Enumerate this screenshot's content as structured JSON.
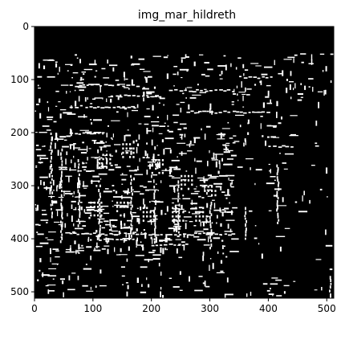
{
  "chart_data": {
    "type": "heatmap",
    "subtype": "binary-edge-image",
    "title": "img_mar_hildreth",
    "colormap": "gray",
    "image_width": 512,
    "image_height": 512,
    "xlim": [
      0,
      512
    ],
    "ylim": [
      512,
      0
    ],
    "xticks": [
      0,
      100,
      200,
      300,
      400,
      500
    ],
    "yticks": [
      0,
      100,
      200,
      300,
      400,
      500
    ],
    "xtick_labels": [
      "0",
      "100",
      "200",
      "300",
      "400",
      "500"
    ],
    "ytick_labels": [
      "0",
      "100",
      "200",
      "300",
      "400",
      "500"
    ],
    "background_color": "#000000",
    "edge_color": "#ffffff",
    "description": "White edge pixels on black: rooftops and windows of a hillside town"
  }
}
